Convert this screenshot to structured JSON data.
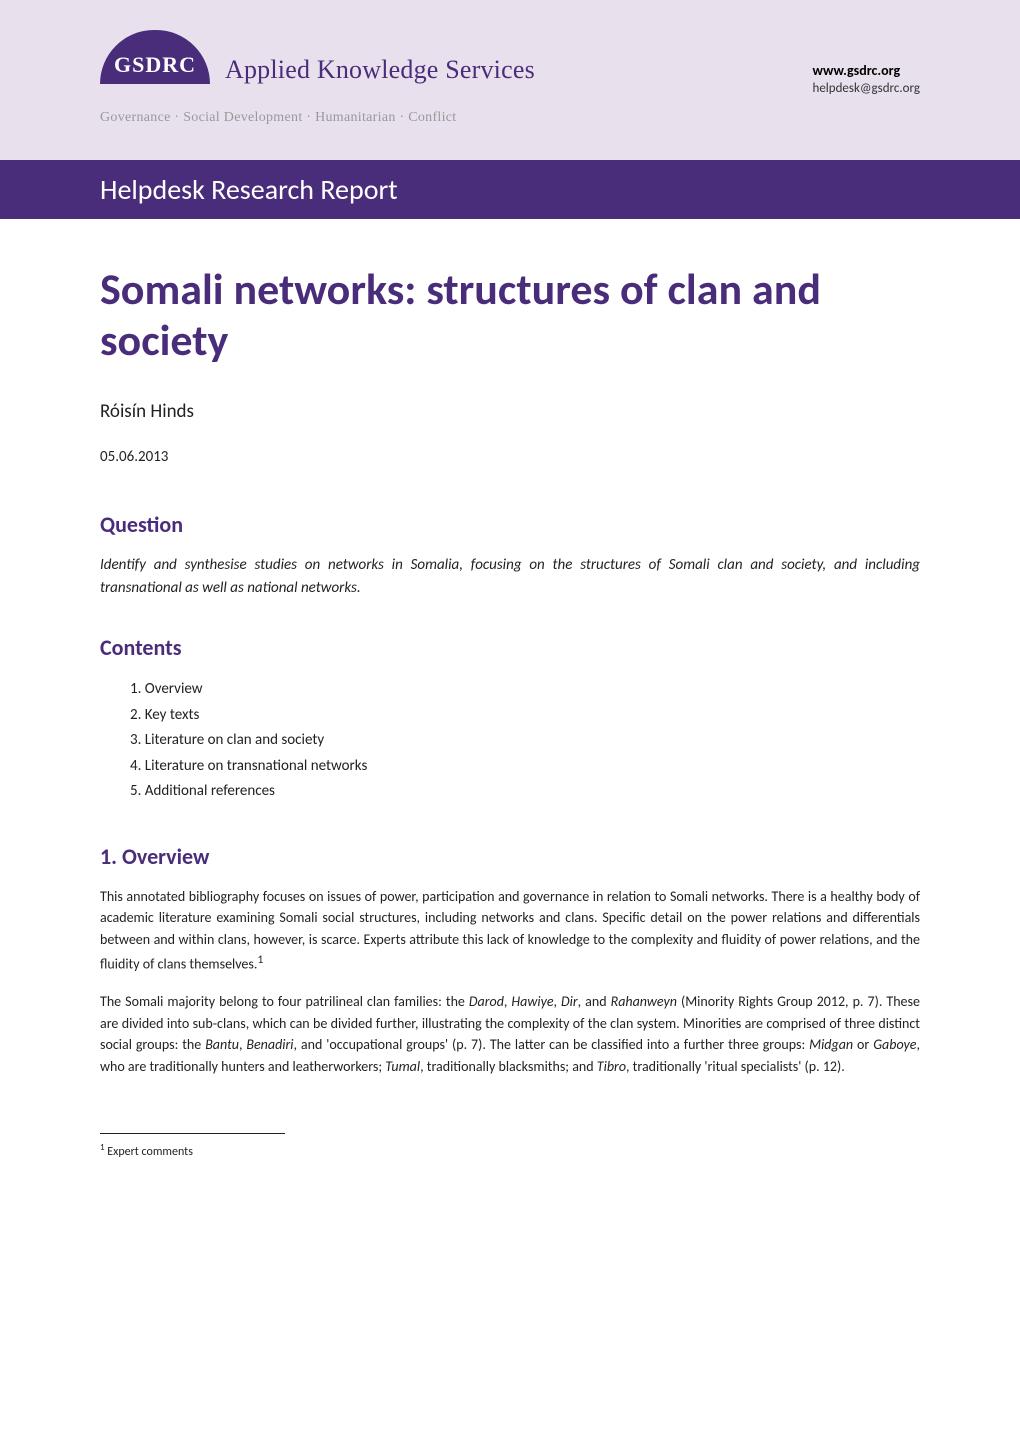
{
  "colors": {
    "brand_purple": "#4a2d7a",
    "header_bg": "#e8e0ec",
    "logo_gray": "#999999",
    "text_body": "#222222",
    "white": "#ffffff"
  },
  "typography": {
    "body_font": "Calibri",
    "logo_font": "Georgia",
    "title_size_pt": 33,
    "heading_size_pt": 17,
    "body_size_pt": 11
  },
  "header": {
    "logo_acronym": "GSDRC",
    "logo_tagline": "Applied Knowledge Services",
    "logo_subtitle": "Governance · Social Development · Humanitarian · Conflict",
    "site_url": "www.gsdrc.org",
    "site_email": "helpdesk@gsdrc.org"
  },
  "banner": {
    "text": "Helpdesk Research Report"
  },
  "document": {
    "title": "Somali networks: structures of clan and society",
    "author": "Róisín Hinds",
    "date": "05.06.2013"
  },
  "question": {
    "heading": "Question",
    "text": "Identify and synthesise studies on networks in Somalia, focusing on the structures of Somali clan and society, and including transnational as well as national networks."
  },
  "contents": {
    "heading": "Contents",
    "items": [
      "Overview",
      "Key texts",
      "Literature on clan and society",
      "Literature on transnational networks",
      "Additional references"
    ]
  },
  "overview": {
    "heading": "1.  Overview",
    "paragraphs": [
      "This annotated bibliography focuses on issues of power, participation and governance in relation to Somali networks. There is a healthy body of academic literature examining Somali social structures, including networks and clans. Specific detail on the power relations and differentials between and within clans, however, is scarce. Experts attribute this lack of knowledge to the complexity and fluidity of power relations, and the fluidity of clans themselves.",
      "The Somali majority belong to four patrilineal clan families: the Darod, Hawiye, Dir, and Rahanweyn (Minority Rights Group 2012, p. 7). These are divided into sub-clans, which can be divided further, illustrating the complexity of the clan system. Minorities are comprised of three distinct social groups: the Bantu, Benadiri, and 'occupational groups' (p. 7). The latter can be classified into a further three groups: Midgan or Gaboye, who are traditionally hunters and leatherworkers; Tumal, traditionally blacksmiths; and Tibro, traditionally 'ritual specialists' (p. 12)."
    ],
    "para2_italics": [
      "Darod",
      "Hawiye",
      "Dir",
      "Rahanweyn",
      "Bantu",
      "Benadiri",
      "Midgan",
      "Gaboye",
      "Tumal",
      "Tibro"
    ]
  },
  "footnote": {
    "marker": "1",
    "text": "Expert comments"
  }
}
